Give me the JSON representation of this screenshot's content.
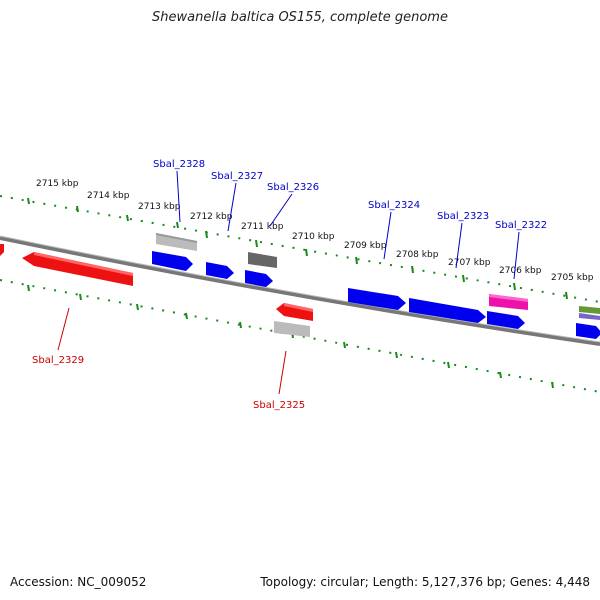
{
  "title": "Shewanella baltica OS155, complete genome",
  "accession": "Accession: NC_009052",
  "summary": "Topology: circular; Length: 5,127,376 bp; Genes: 4,448",
  "colors": {
    "forward_gene": "#0000ee",
    "reverse_gene": "#ee0000",
    "backbone": "#777777",
    "tick": "#1a8a1a",
    "forward_label": "#0000cc",
    "reverse_label": "#cc0000"
  },
  "scale_labels": [
    "2715 kbp",
    "2714 kbp",
    "2713 kbp",
    "2712 kbp",
    "2711 kbp",
    "2710 kbp",
    "2709 kbp",
    "2708 kbp",
    "2707 kbp",
    "2706 kbp",
    "2705 kbp"
  ],
  "gene_labels": {
    "forward": [
      "Sbal_2328",
      "Sbal_2327",
      "Sbal_2326",
      "Sbal_2324",
      "Sbal_2323",
      "Sbal_2322"
    ],
    "reverse": [
      "Sbal_2329",
      "Sbal_2325"
    ]
  }
}
